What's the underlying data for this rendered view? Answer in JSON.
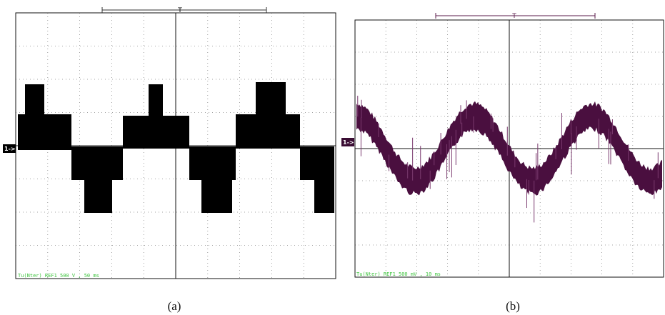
{
  "panels": [
    {
      "caption": "(a)",
      "channel": "1->",
      "trigger": "T",
      "status": "Tu(Nter) REF1 500 V , 50 ms"
    },
    {
      "caption": "(b)",
      "channel": "1->",
      "trigger": "T",
      "status": "Tu(Nter) REF1 500 mV , 10 ms"
    }
  ]
}
